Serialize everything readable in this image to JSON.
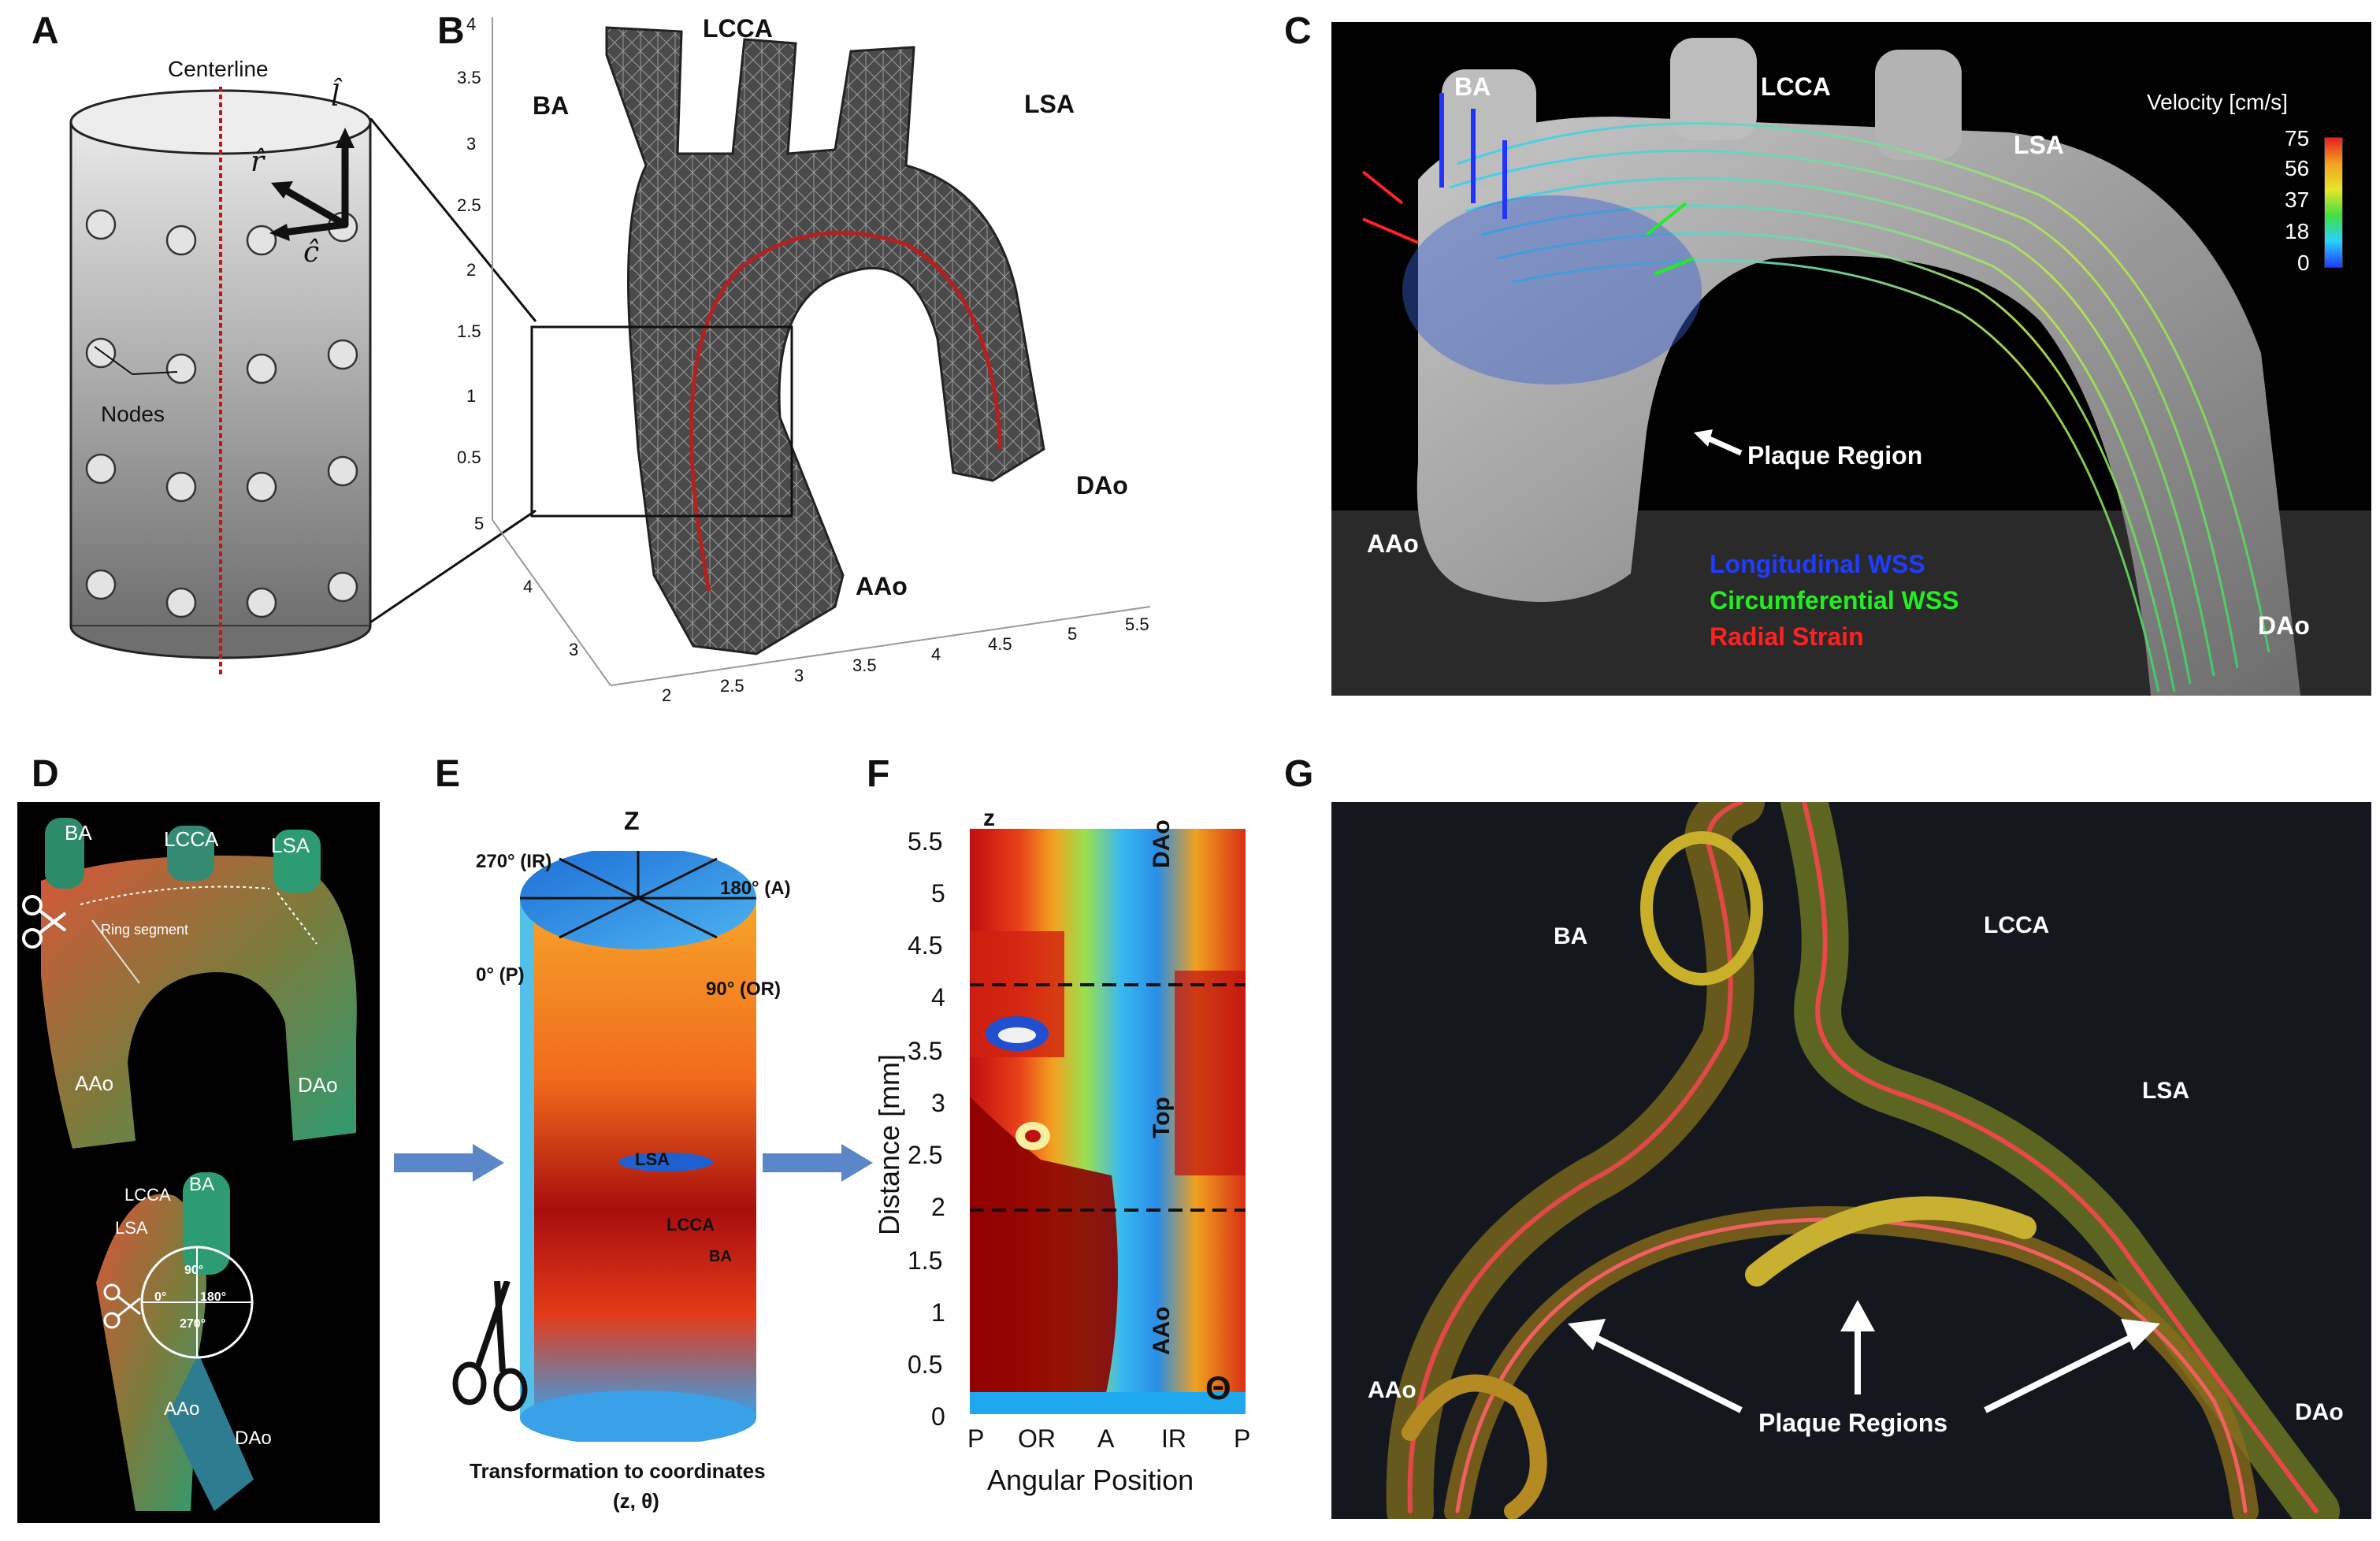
{
  "panels": {
    "A": {
      "letter": "A",
      "centerline": "Centerline",
      "nodes": "Nodes",
      "axis_l": "l̂",
      "axis_r": "r̂",
      "axis_c": "ĉ"
    },
    "B": {
      "letter": "B",
      "vessels": {
        "ba": "BA",
        "lcca": "LCCA",
        "lsa": "LSA",
        "dao": "DAo",
        "aao": "AAo"
      },
      "z_ticks": [
        "4",
        "3.5",
        "3",
        "2.5",
        "2",
        "1.5",
        "1",
        "0.5"
      ],
      "y_ticks": [
        "5",
        "4",
        "3"
      ],
      "x_ticks": [
        "2",
        "2.5",
        "3",
        "3.5",
        "4",
        "4.5",
        "5",
        "5.5"
      ]
    },
    "C": {
      "letter": "C",
      "vessels": {
        "ba": "BA",
        "lcca": "LCCA",
        "lsa": "LSA",
        "aao": "AAo",
        "dao": "DAo"
      },
      "colorbar_title": "Velocity [cm/s]",
      "colorbar_ticks": [
        "75",
        "56",
        "37",
        "18",
        "0"
      ],
      "plaque_label": "Plaque Region",
      "legend": {
        "longitudinal": "Longitudinal WSS",
        "circumferential": "Circumferential WSS",
        "radial": "Radial Strain"
      },
      "legend_colors": {
        "longitudinal": "#1f3cff",
        "circumferential": "#22ee22",
        "radial": "#ff2020"
      }
    },
    "D": {
      "letter": "D",
      "top": {
        "ba": "BA",
        "lcca": "LCCA",
        "lsa": "LSA",
        "aao": "AAo",
        "dao": "DAo",
        "ring": "Ring segment"
      },
      "bottom": {
        "lcca": "LCCA",
        "ba": "BA",
        "lsa": "LSA",
        "aao": "AAo",
        "dao": "DAo",
        "deg0": "0°",
        "deg90": "90°",
        "deg180": "180°",
        "deg270": "270°"
      }
    },
    "E": {
      "letter": "E",
      "z": "Z",
      "deg270": "270° (IR)",
      "deg180": "180° (A)",
      "deg0": "0° (P)",
      "deg90": "90° (OR)",
      "lsa": "LSA",
      "lcca": "LCCA",
      "ba": "BA",
      "caption_line1": "Transformation to coordinates",
      "caption_line2": "(z, θ)"
    },
    "F": {
      "letter": "F",
      "z": "z",
      "theta": "Θ",
      "ylabel": "Distance [mm]",
      "xlabel": "Angular Position",
      "y_ticks": [
        "5.5",
        "5",
        "4.5",
        "4",
        "3.5",
        "3",
        "2.5",
        "2",
        "1.5",
        "1",
        "0.5",
        "0"
      ],
      "x_ticks": [
        "P",
        "OR",
        "A",
        "IR",
        "P"
      ],
      "regions": {
        "dao": "DAo",
        "top": "Top",
        "aao": "AAo"
      }
    },
    "G": {
      "letter": "G",
      "vessels": {
        "ba": "BA",
        "lcca": "LCCA",
        "lsa": "LSA",
        "aao": "AAo",
        "dao": "DAo"
      },
      "plaque_label": "Plaque Regions"
    }
  }
}
